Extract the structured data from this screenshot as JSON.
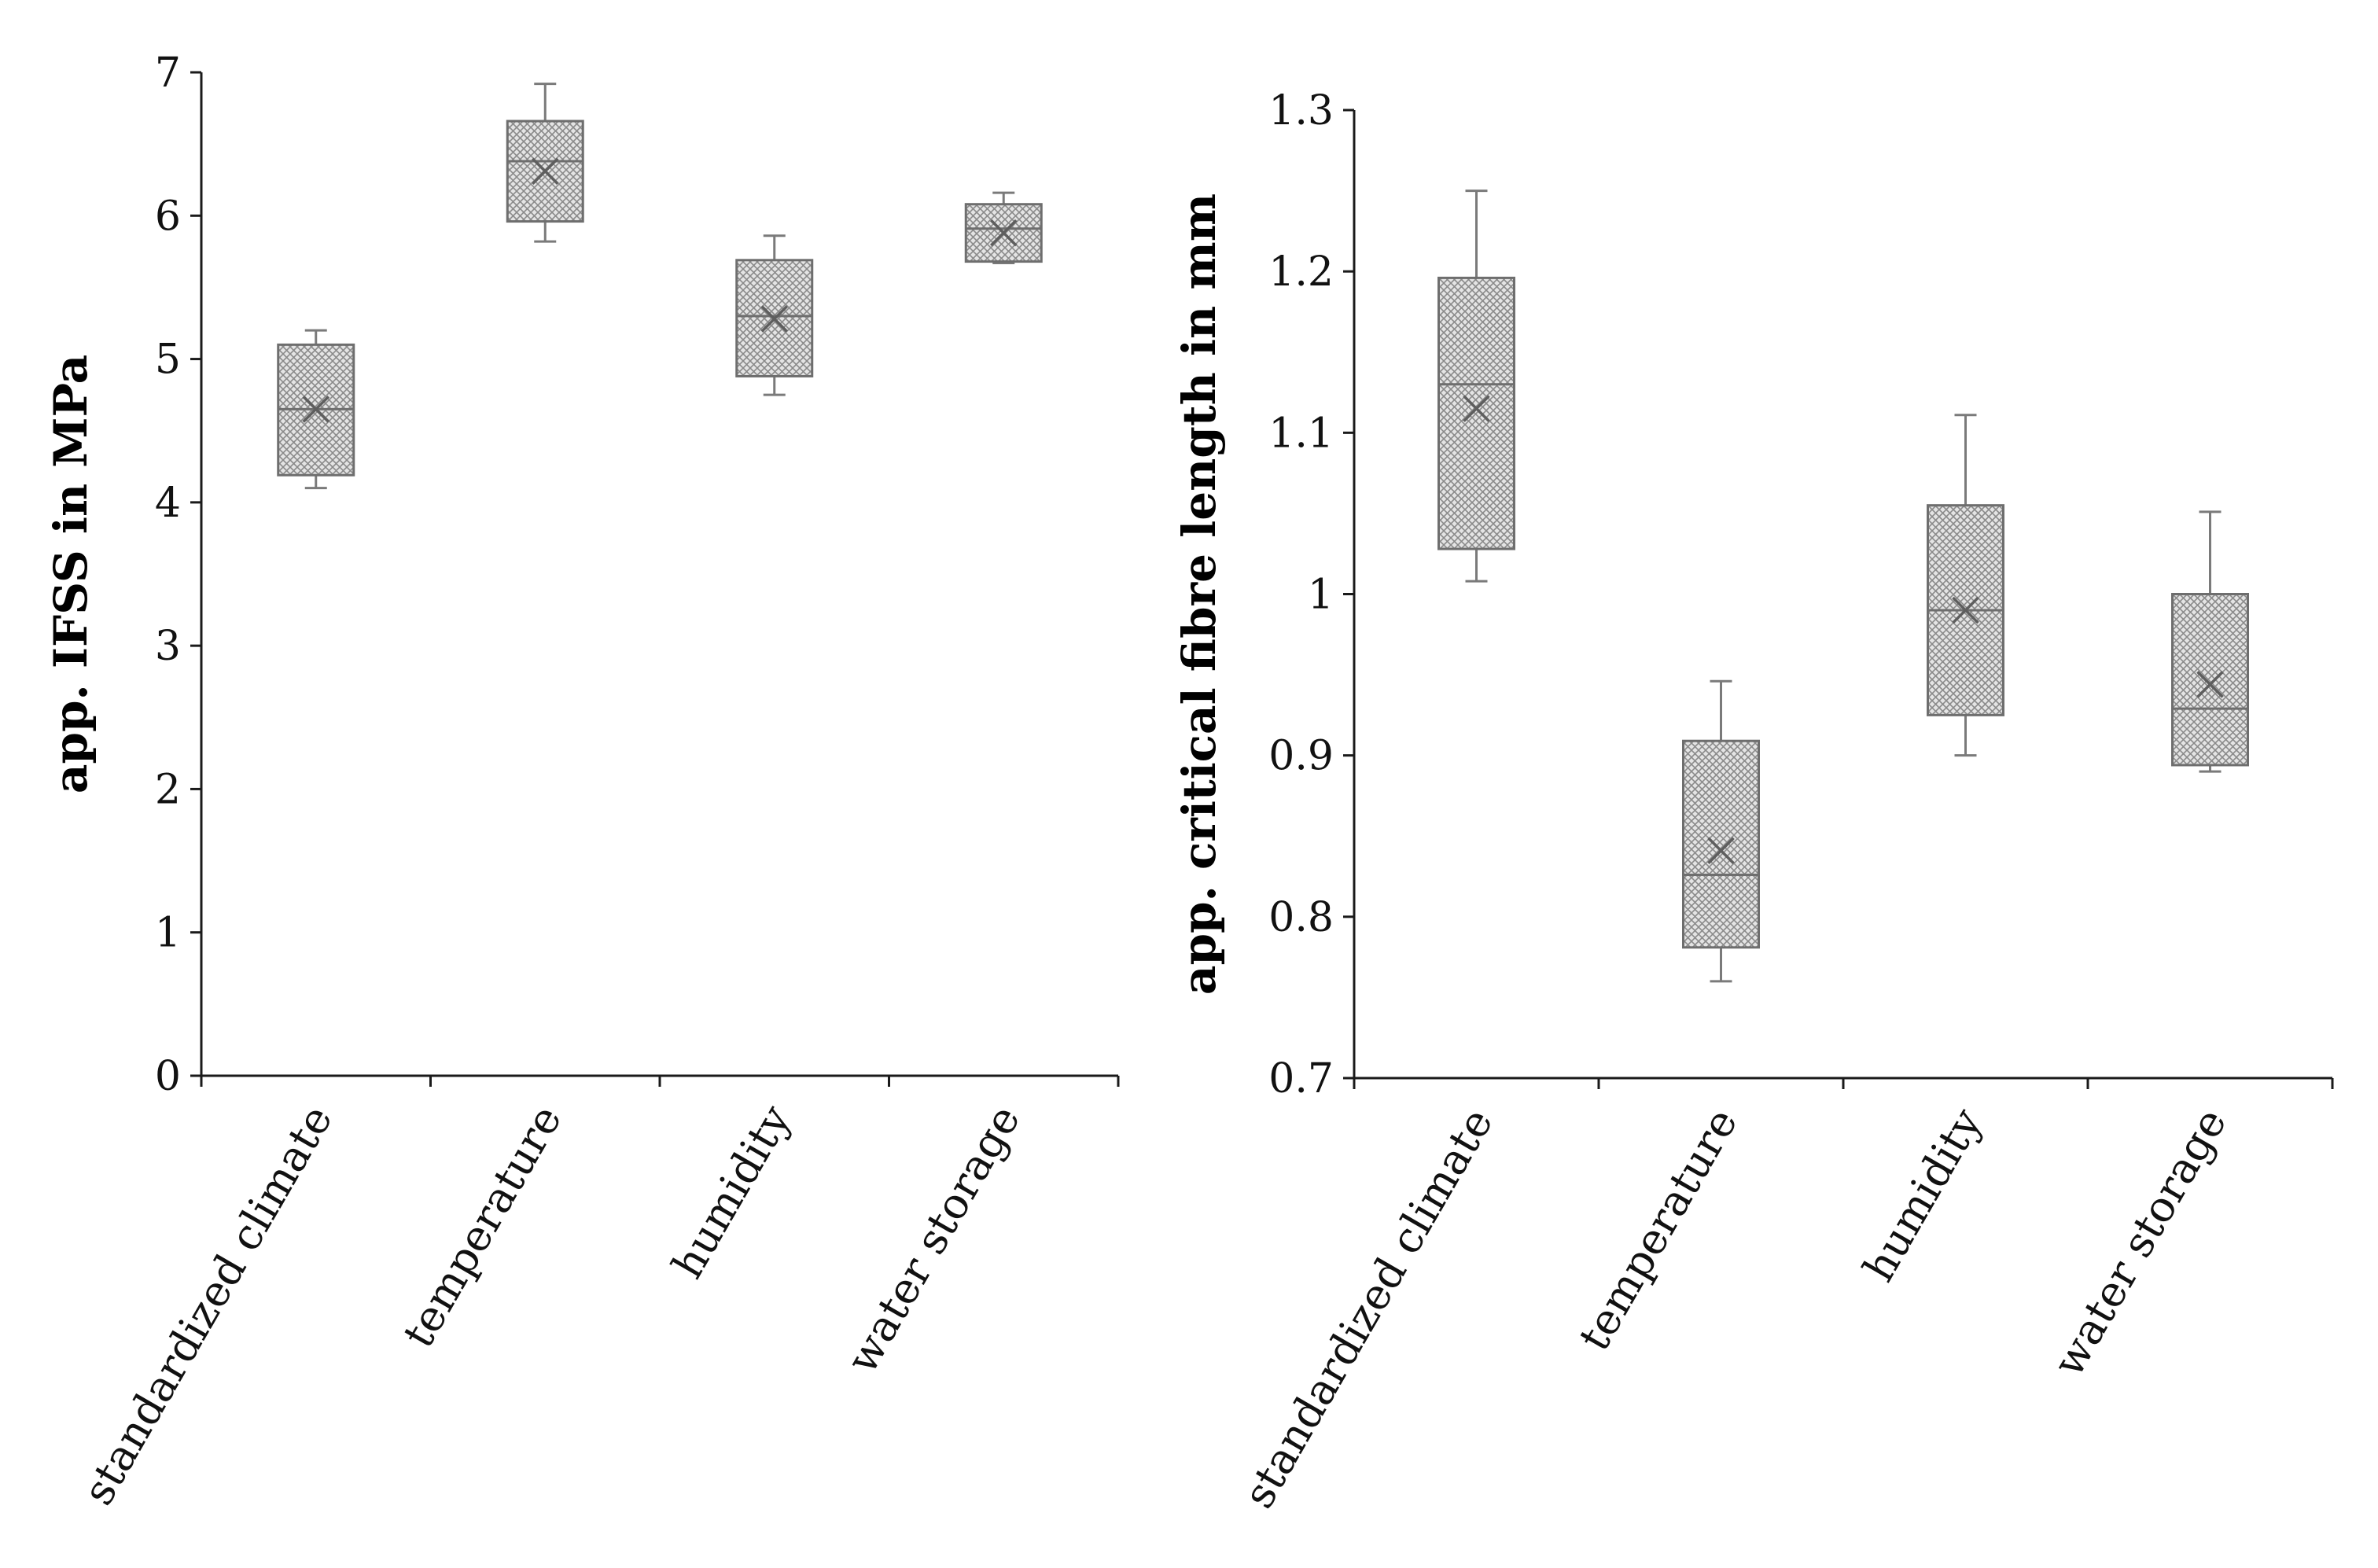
{
  "chart_data": [
    {
      "type": "boxplot",
      "title": "",
      "xlabel": "",
      "ylabel": "app. IFSS in MPa",
      "ylim": [
        0,
        7
      ],
      "yticks": [
        0,
        1,
        2,
        3,
        4,
        5,
        6,
        7
      ],
      "categories": [
        "standardized climate",
        "temperature",
        "humidity",
        "water storage"
      ],
      "boxes": [
        {
          "min": 4.1,
          "q1": 4.19,
          "median": 4.65,
          "q3": 5.1,
          "max": 5.2,
          "mean": 4.65
        },
        {
          "min": 5.82,
          "q1": 5.96,
          "median": 6.38,
          "q3": 6.66,
          "max": 6.92,
          "mean": 6.31
        },
        {
          "min": 4.75,
          "q1": 4.88,
          "median": 5.3,
          "q3": 5.69,
          "max": 5.86,
          "mean": 5.28
        },
        {
          "min": 5.67,
          "q1": 5.68,
          "median": 5.91,
          "q3": 6.08,
          "max": 6.16,
          "mean": 5.88
        }
      ]
    },
    {
      "type": "boxplot",
      "title": "",
      "xlabel": "",
      "ylabel": "app. critical fibre length in mm",
      "ylim": [
        0.7,
        1.3
      ],
      "yticks": [
        0.7,
        0.8,
        0.9,
        1,
        1.1,
        1.2,
        1.3
      ],
      "categories": [
        "standardized climate",
        "temperature",
        "humidity",
        "water storage"
      ],
      "boxes": [
        {
          "min": 1.008,
          "q1": 1.028,
          "median": 1.13,
          "q3": 1.196,
          "max": 1.25,
          "mean": 1.115
        },
        {
          "min": 0.76,
          "q1": 0.781,
          "median": 0.826,
          "q3": 0.909,
          "max": 0.946,
          "mean": 0.841
        },
        {
          "min": 0.9,
          "q1": 0.925,
          "median": 0.99,
          "q3": 1.055,
          "max": 1.111,
          "mean": 0.99
        },
        {
          "min": 0.89,
          "q1": 0.894,
          "median": 0.929,
          "q3": 1.0,
          "max": 1.051,
          "mean": 0.944
        }
      ]
    }
  ]
}
